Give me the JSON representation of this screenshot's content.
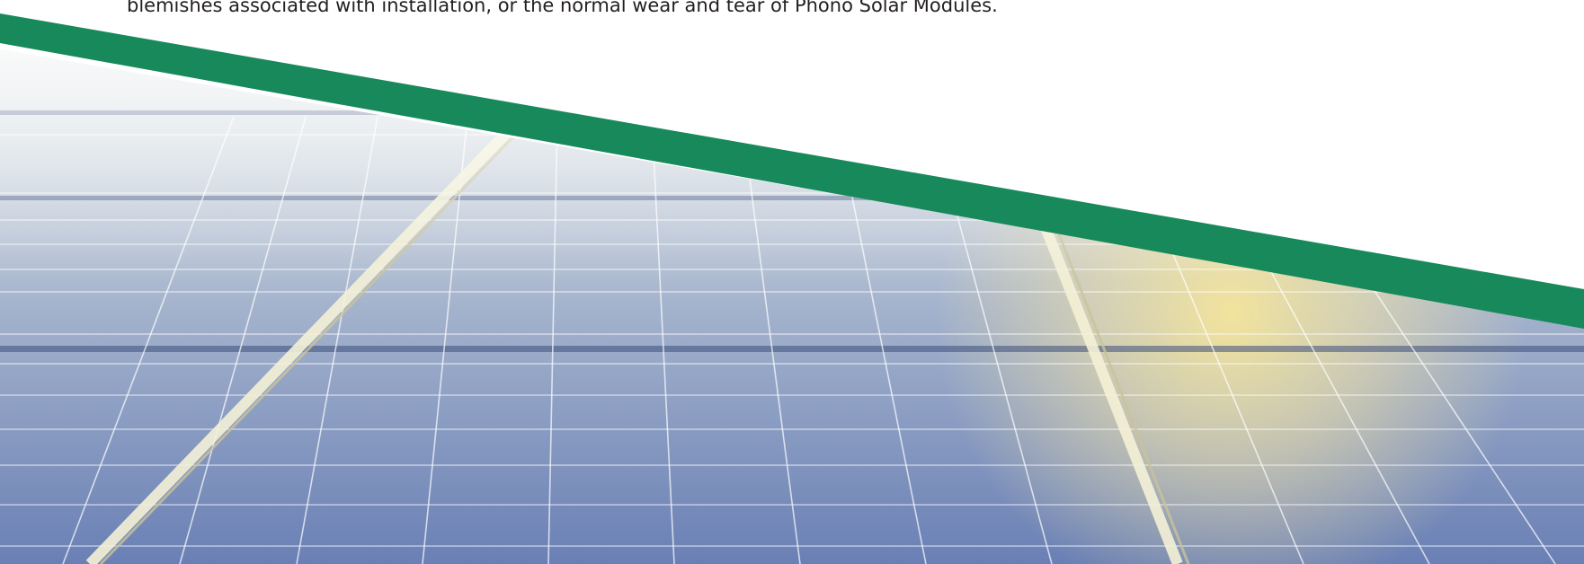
{
  "document": {
    "text_line": "blemishes associated with installation, or the normal wear and tear of Phono Solar Modules."
  },
  "colors": {
    "accent_green": "#17895a",
    "panel_blue": "#6f84b6",
    "panel_gray": "#c8d0dc",
    "sun_glare": "#f3e29a",
    "text": "#231f20"
  },
  "image": {
    "subject": "solar-panels-photo"
  }
}
